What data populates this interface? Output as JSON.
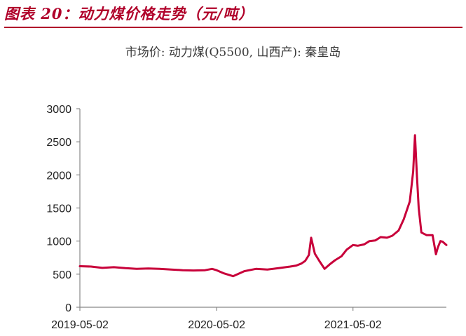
{
  "figure": {
    "title": "图表 20：动力煤价格走势（元/吨）"
  },
  "chart_data": {
    "type": "line",
    "title": "市场价: 动力煤(Q5500, 山西产): 秦皇岛",
    "xlabel": "",
    "ylabel": "",
    "ylim": [
      0,
      3000
    ],
    "yticks": [
      "0",
      "500",
      "1000",
      "1500",
      "2000",
      "2500",
      "3000"
    ],
    "xticks": [
      "2019-05-02",
      "2020-05-02",
      "2021-05-02"
    ],
    "xlim": [
      "2019-05-02",
      "2022-01-07"
    ],
    "grid": false,
    "legend": "none",
    "color": "#c8003a",
    "x": [
      "2019-05-02",
      "2019-06-01",
      "2019-07-01",
      "2019-08-01",
      "2019-09-01",
      "2019-10-01",
      "2019-11-01",
      "2019-12-01",
      "2020-01-01",
      "2020-02-01",
      "2020-03-01",
      "2020-04-01",
      "2020-04-20",
      "2020-05-02",
      "2020-05-20",
      "2020-06-15",
      "2020-07-15",
      "2020-08-15",
      "2020-09-15",
      "2020-10-15",
      "2020-11-15",
      "2020-12-01",
      "2020-12-15",
      "2020-12-25",
      "2021-01-04",
      "2021-01-10",
      "2021-01-20",
      "2021-02-01",
      "2021-02-15",
      "2021-03-01",
      "2021-03-15",
      "2021-04-01",
      "2021-04-15",
      "2021-05-02",
      "2021-05-15",
      "2021-06-01",
      "2021-06-15",
      "2021-07-01",
      "2021-07-15",
      "2021-08-01",
      "2021-08-15",
      "2021-09-01",
      "2021-09-15",
      "2021-10-01",
      "2021-10-10",
      "2021-10-15",
      "2021-10-20",
      "2021-10-25",
      "2021-11-01",
      "2021-11-15",
      "2021-12-01",
      "2021-12-10",
      "2021-12-15",
      "2021-12-22",
      "2021-12-28",
      "2022-01-07"
    ],
    "series": [
      {
        "values": [
          620,
          615,
          595,
          605,
          590,
          580,
          585,
          580,
          570,
          560,
          555,
          560,
          580,
          560,
          515,
          470,
          545,
          580,
          570,
          590,
          615,
          630,
          660,
          700,
          790,
          1050,
          810,
          700,
          580,
          650,
          710,
          770,
          870,
          940,
          930,
          950,
          1000,
          1010,
          1060,
          1050,
          1080,
          1160,
          1330,
          1600,
          2050,
          2600,
          2000,
          1500,
          1130,
          1090,
          1090,
          800,
          900,
          1000,
          990,
          940
        ]
      }
    ]
  }
}
